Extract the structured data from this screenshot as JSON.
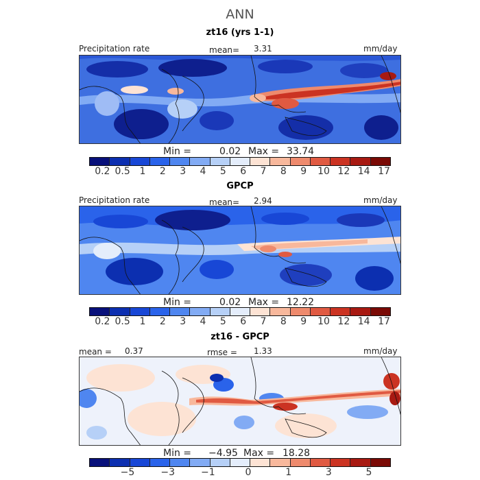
{
  "figure": {
    "title": "ANN"
  },
  "panels": [
    {
      "id": "model",
      "title": "zt16 (yrs 1-1)",
      "left_label": "Precipitation rate",
      "stat_label": "mean=",
      "stat_value": "3.31",
      "units": "mm/day",
      "minmax": {
        "min_label": "Min =",
        "min": "0.02",
        "max_label": "Max =",
        "max": "33.74"
      }
    },
    {
      "id": "obs",
      "title": "GPCP",
      "left_label": "Precipitation rate",
      "stat_label": "mean=",
      "stat_value": "2.94",
      "units": "mm/day",
      "minmax": {
        "min_label": "Min =",
        "min": "0.02",
        "max_label": "Max =",
        "max": "12.22"
      }
    },
    {
      "id": "diff",
      "title": "zt16 - GPCP",
      "left_label": "mean =",
      "left_value": "0.37",
      "stat_label": "rmse =",
      "stat_value": "1.33",
      "units": "mm/day",
      "minmax": {
        "min_label": "Min =",
        "min": "−4.95",
        "max_label": "Max =",
        "max": "18.28"
      }
    }
  ],
  "colorbars": {
    "precip": {
      "colors": [
        "#08107a",
        "#0c2fb0",
        "#1847d6",
        "#2a63ea",
        "#4f86f0",
        "#82abf4",
        "#b6d0f7",
        "#e4edfb",
        "#fde3d4",
        "#f8b89c",
        "#ee8a6d",
        "#e05a42",
        "#cb3322",
        "#a81a12",
        "#7a0a05"
      ],
      "ticks": [
        "0.2",
        "0.5",
        "1",
        "2",
        "3",
        "4",
        "5",
        "6",
        "7",
        "8",
        "9",
        "10",
        "12",
        "14",
        "17"
      ]
    },
    "diff": {
      "colors": [
        "#08107a",
        "#0c2fb0",
        "#1847d6",
        "#2a63ea",
        "#4f86f0",
        "#82abf4",
        "#b6d0f7",
        "#e4edfb",
        "#fde3d4",
        "#f8b89c",
        "#ee8a6d",
        "#e05a42",
        "#cb3322",
        "#a81a12",
        "#7a0a05"
      ],
      "ticks": [
        "−5",
        "−3",
        "−1",
        "0",
        "1",
        "3",
        "5"
      ]
    }
  }
}
